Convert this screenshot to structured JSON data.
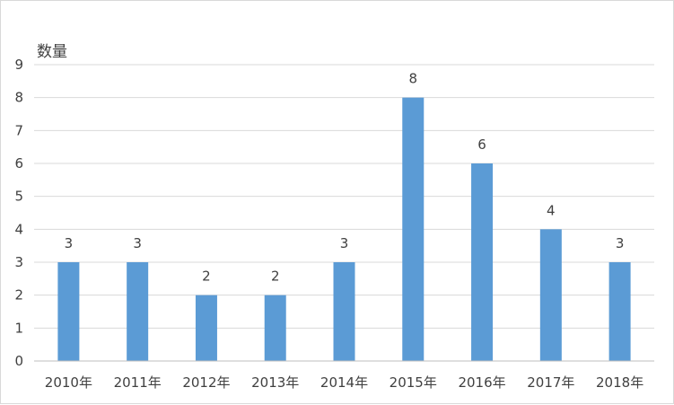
{
  "chart_data": {
    "type": "bar",
    "categories": [
      "2010年",
      "2011年",
      "2012年",
      "2013年",
      "2014年",
      "2015年",
      "2016年",
      "2017年",
      "2018年"
    ],
    "values": [
      3,
      3,
      2,
      2,
      3,
      8,
      6,
      4,
      3
    ],
    "ylabel": "数量",
    "xlabel": "",
    "title": "",
    "ylim": [
      0,
      9
    ],
    "yticks": [
      "0",
      "1",
      "2",
      "3",
      "4",
      "5",
      "6",
      "7",
      "8",
      "9"
    ],
    "data_labels": [
      "3",
      "3",
      "2",
      "2",
      "3",
      "8",
      "6",
      "4",
      "3"
    ],
    "grid": true,
    "legend": "none",
    "colors": {
      "bar": "#5b9bd5",
      "grid": "#d9d9d9",
      "axis": "#bfbfbf",
      "text": "#404040"
    }
  }
}
